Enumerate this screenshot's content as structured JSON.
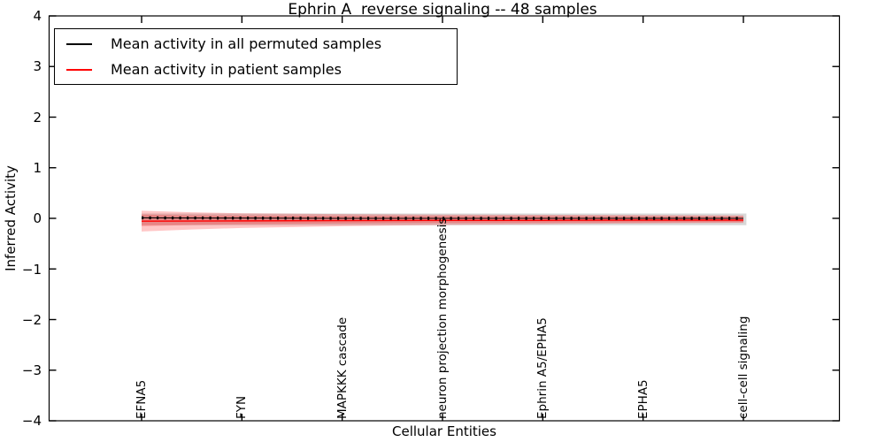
{
  "chart_data": {
    "type": "line",
    "title": "Ephrin A  reverse signaling -- 48 samples",
    "xlabel": "Cellular Entities",
    "ylabel": "Inferred Activity",
    "ylim": [
      -4,
      4
    ],
    "grid": false,
    "legend_position": "upper left",
    "ytick_values": [
      4,
      3,
      2,
      1,
      0,
      -1,
      -2,
      -3,
      -4
    ],
    "ytick_labels": [
      "4",
      "3",
      "2",
      "1",
      "0",
      "−1",
      "−2",
      "−3",
      "−4"
    ],
    "categories": [
      "EFNA5",
      "FYN",
      "MAPKKK cascade",
      "neuron projection morphogenesis",
      "Ephrin A5/EPHA5",
      "EPHA5",
      "cell-cell signaling"
    ],
    "category_positions": [
      0,
      1,
      2,
      3,
      4,
      5,
      6
    ],
    "series": [
      {
        "name": "Mean activity in all permuted samples",
        "color": "#000000",
        "x": [
          0,
          1,
          2,
          3,
          4,
          5,
          6
        ],
        "values": [
          0.01,
          0.005,
          0.0,
          0.0,
          0.0,
          0.0,
          0.0
        ],
        "marker": "|",
        "marker_count": 81
      },
      {
        "name": "Mean activity in patient samples",
        "color": "#ff0000",
        "x": [
          0,
          1,
          2,
          3,
          4,
          5,
          6
        ],
        "values": [
          -0.055,
          -0.05,
          -0.045,
          -0.04,
          -0.04,
          -0.035,
          -0.035
        ]
      }
    ],
    "bands": [
      {
        "name": "permuted-samples-std",
        "color": "#999999",
        "opacity": 0.38,
        "x": [
          0,
          6.03
        ],
        "top": [
          0.095,
          0.095
        ],
        "bottom": [
          -0.135,
          -0.135
        ]
      },
      {
        "name": "patient-samples-std-outer",
        "color": "#ff0000",
        "opacity": 0.22,
        "x": [
          0,
          0.5,
          1,
          2,
          3,
          4,
          5,
          6
        ],
        "top": [
          0.15,
          0.12,
          0.1,
          0.085,
          0.075,
          0.07,
          0.065,
          0.06
        ],
        "bottom": [
          -0.26,
          -0.22,
          -0.19,
          -0.155,
          -0.13,
          -0.115,
          -0.1,
          -0.09
        ]
      },
      {
        "name": "patient-samples-std-inner",
        "color": "#ff0000",
        "opacity": 0.2,
        "x": [
          0,
          0.5,
          1,
          2,
          3,
          4,
          5,
          6
        ],
        "top": [
          0.075,
          0.06,
          0.055,
          0.05,
          0.045,
          0.045,
          0.04,
          0.04
        ],
        "bottom": [
          -0.155,
          -0.13,
          -0.115,
          -0.1,
          -0.09,
          -0.085,
          -0.08,
          -0.075
        ]
      }
    ]
  },
  "legend": {
    "entries": [
      {
        "label": "Mean activity in all permuted samples",
        "color": "#000000"
      },
      {
        "label": "Mean activity in patient samples",
        "color": "#ff0000"
      }
    ]
  }
}
